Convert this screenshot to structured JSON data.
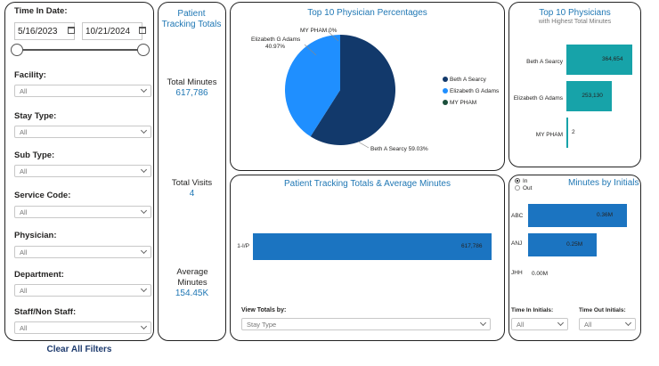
{
  "filters": {
    "time_in_date_label": "Time In Date:",
    "start_date": "5/16/2023",
    "end_date": "10/21/2024",
    "dropdowns": [
      {
        "label": "Facility:",
        "value": "All"
      },
      {
        "label": "Stay Type:",
        "value": "All"
      },
      {
        "label": "Sub Type:",
        "value": "All"
      },
      {
        "label": "Service Code:",
        "value": "All"
      },
      {
        "label": "Physician:",
        "value": "All"
      },
      {
        "label": "Department:",
        "value": "All"
      },
      {
        "label": "Staff/Non Staff:",
        "value": "All"
      }
    ],
    "clear_all": "Clear All Filters"
  },
  "totals": {
    "title": "Patient Tracking Totals",
    "total_minutes_label": "Total Minutes",
    "total_minutes_value": "617,786",
    "total_visits_label": "Total Visits",
    "total_visits_value": "4",
    "avg_minutes_label": "Average Minutes",
    "avg_minutes_value": "154.45K"
  },
  "pie_card": {
    "title": "Top 10 Physician Percentages",
    "label_elizabeth": "Elizabeth G Adams",
    "label_elizabeth_pct": "40.97%",
    "label_myp": "MY PHAM 0%",
    "label_beth": "Beth A Searcy 59.03%",
    "legend": [
      "Beth A Searcy",
      "Elizabeth G Adams",
      "MY PHAM"
    ],
    "colors": [
      "#12396b",
      "#1f8fff",
      "#1b4f3b"
    ]
  },
  "top10_card": {
    "title": "Top 10 Physicians",
    "subtitle": "with Highest Total Minutes",
    "color": "#17a3a9"
  },
  "tracking_card": {
    "title": "Patient Tracking Totals & Average Minutes",
    "view_label": "View Totals by:",
    "view_value": "Stay Type",
    "color": "#1b74c1"
  },
  "initials_card": {
    "title": "Minutes by Initials",
    "radio_in": "In",
    "radio_out": "Out",
    "time_in_label": "Time In Initials:",
    "time_in_value": "All",
    "time_out_label": "Time Out Initials:",
    "time_out_value": "All",
    "color": "#1b74c1"
  },
  "chart_data": [
    {
      "type": "pie",
      "title": "Top 10 Physician Percentages",
      "categories": [
        "Beth A Searcy",
        "Elizabeth G Adams",
        "MY PHAM"
      ],
      "values": [
        59.03,
        40.97,
        0
      ]
    },
    {
      "type": "bar",
      "title": "Top 10 Physicians",
      "subtitle": "with Highest Total Minutes",
      "categories": [
        "Beth A Searcy",
        "Elizabeth G Adams",
        "MY PHAM"
      ],
      "values": [
        364654,
        253130,
        2
      ],
      "value_labels": [
        "364,654",
        "253,130",
        "2"
      ]
    },
    {
      "type": "bar",
      "title": "Patient Tracking Totals & Average Minutes",
      "categories": [
        "1-I/P"
      ],
      "values": [
        617786
      ],
      "value_labels": [
        "617,786"
      ]
    },
    {
      "type": "bar",
      "title": "Minutes by Initials",
      "categories": [
        "ABC",
        "ANJ",
        "JHH"
      ],
      "values": [
        0.36,
        0.25,
        0.0
      ],
      "value_labels": [
        "0.36M",
        "0.25M",
        "0.00M"
      ]
    }
  ]
}
